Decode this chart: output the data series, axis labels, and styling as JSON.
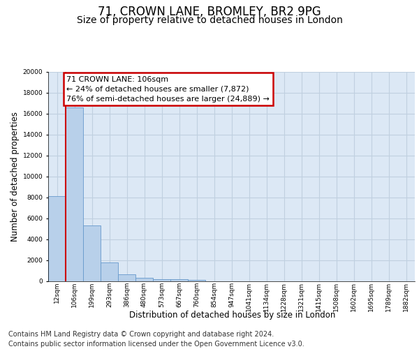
{
  "title_line1": "71, CROWN LANE, BROMLEY, BR2 9PG",
  "title_line2": "Size of property relative to detached houses in London",
  "xlabel": "Distribution of detached houses by size in London",
  "ylabel": "Number of detached properties",
  "categories": [
    "12sqm",
    "106sqm",
    "199sqm",
    "293sqm",
    "386sqm",
    "480sqm",
    "573sqm",
    "667sqm",
    "760sqm",
    "854sqm",
    "947sqm",
    "1041sqm",
    "1134sqm",
    "1228sqm",
    "1321sqm",
    "1415sqm",
    "1508sqm",
    "1602sqm",
    "1695sqm",
    "1789sqm",
    "1882sqm"
  ],
  "values": [
    8100,
    16600,
    5300,
    1800,
    650,
    320,
    200,
    150,
    120,
    0,
    0,
    0,
    0,
    0,
    0,
    0,
    0,
    0,
    0,
    0,
    0
  ],
  "bar_color": "#b8d0ea",
  "bar_edge_color": "#6699cc",
  "highlight_line_color": "#cc0000",
  "annotation_line1": "71 CROWN LANE: 106sqm",
  "annotation_line2": "← 24% of detached houses are smaller (7,872)",
  "annotation_line3": "76% of semi-detached houses are larger (24,889) →",
  "annotation_box_edgecolor": "#cc0000",
  "ylim": [
    0,
    20000
  ],
  "yticks": [
    0,
    2000,
    4000,
    6000,
    8000,
    10000,
    12000,
    14000,
    16000,
    18000,
    20000
  ],
  "grid_color": "#c0d0e0",
  "bg_color": "#dce8f5",
  "footer_line1": "Contains HM Land Registry data © Crown copyright and database right 2024.",
  "footer_line2": "Contains public sector information licensed under the Open Government Licence v3.0.",
  "title_fontsize": 12,
  "subtitle_fontsize": 10,
  "axis_label_fontsize": 8.5,
  "tick_fontsize": 6.5,
  "annotation_fontsize": 8,
  "footer_fontsize": 7
}
